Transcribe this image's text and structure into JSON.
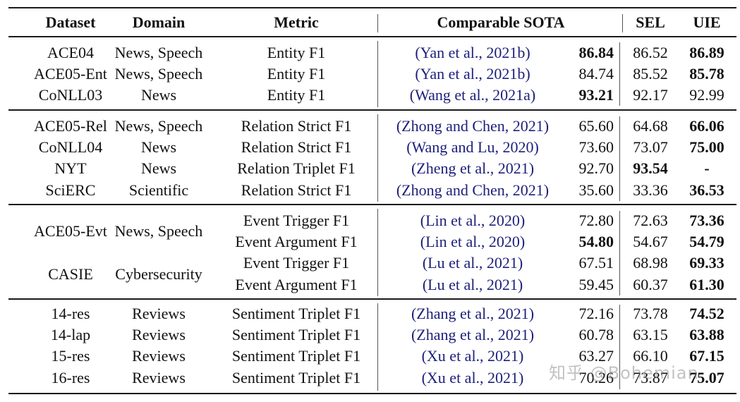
{
  "table": {
    "headers": {
      "dataset": "Dataset",
      "domain": "Domain",
      "metric": "Metric",
      "sota": "Comparable SOTA",
      "sel": "SEL",
      "uie": "UIE"
    },
    "groups": [
      {
        "name": "entity",
        "rows": [
          {
            "dataset": "ACE04",
            "domain": "News, Speech",
            "metric": "Entity F1",
            "cite": "(Yan et al., 2021b)",
            "sota": "86.84",
            "sota_bold": true,
            "sel": "86.52",
            "sel_bold": false,
            "uie": "86.89",
            "uie_bold": true
          },
          {
            "dataset": "ACE05-Ent",
            "domain": "News, Speech",
            "metric": "Entity F1",
            "cite": "(Yan et al., 2021b)",
            "sota": "84.74",
            "sota_bold": false,
            "sel": "85.52",
            "sel_bold": false,
            "uie": "85.78",
            "uie_bold": true
          },
          {
            "dataset": "CoNLL03",
            "domain": "News",
            "metric": "Entity F1",
            "cite": "(Wang et al., 2021a)",
            "sota": "93.21",
            "sota_bold": true,
            "sel": "92.17",
            "sel_bold": false,
            "uie": "92.99",
            "uie_bold": false
          }
        ]
      },
      {
        "name": "relation",
        "rows": [
          {
            "dataset": "ACE05-Rel",
            "domain": "News, Speech",
            "metric": "Relation Strict F1",
            "cite": "(Zhong and Chen, 2021)",
            "sota": "65.60",
            "sota_bold": false,
            "sel": "64.68",
            "sel_bold": false,
            "uie": "66.06",
            "uie_bold": true
          },
          {
            "dataset": "CoNLL04",
            "domain": "News",
            "metric": "Relation Strict F1",
            "cite": "(Wang and Lu, 2020)",
            "sota": "73.60",
            "sota_bold": false,
            "sel": "73.07",
            "sel_bold": false,
            "uie": "75.00",
            "uie_bold": true
          },
          {
            "dataset": "NYT",
            "domain": "News",
            "metric": "Relation Triplet F1",
            "cite": "(Zheng et al., 2021)",
            "sota": "92.70",
            "sota_bold": false,
            "sel": "93.54",
            "sel_bold": true,
            "uie": "-",
            "uie_bold": true
          },
          {
            "dataset": "SciERC",
            "domain": "Scientific",
            "metric": "Relation Strict F1",
            "cite": "(Zhong and Chen, 2021)",
            "sota": "35.60",
            "sota_bold": false,
            "sel": "33.36",
            "sel_bold": false,
            "uie": "36.53",
            "uie_bold": true
          }
        ]
      },
      {
        "name": "event",
        "merged": [
          {
            "dataset": "ACE05-Evt",
            "domain": "News, Speech"
          },
          {
            "dataset": "CASIE",
            "domain": "Cybersecurity"
          }
        ],
        "rows": [
          {
            "metric": "Event Trigger F1",
            "cite": "(Lin et al., 2020)",
            "sota": "72.80",
            "sota_bold": false,
            "sel": "72.63",
            "sel_bold": false,
            "uie": "73.36",
            "uie_bold": true
          },
          {
            "metric": "Event Argument F1",
            "cite": "(Lin et al., 2020)",
            "sota": "54.80",
            "sota_bold": true,
            "sel": "54.67",
            "sel_bold": false,
            "uie": "54.79",
            "uie_bold": true
          },
          {
            "metric": "Event Trigger F1",
            "cite": "(Lu et al., 2021)",
            "sota": "67.51",
            "sota_bold": false,
            "sel": "68.98",
            "sel_bold": false,
            "uie": "69.33",
            "uie_bold": true
          },
          {
            "metric": "Event Argument F1",
            "cite": "(Lu et al., 2021)",
            "sota": "59.45",
            "sota_bold": false,
            "sel": "60.37",
            "sel_bold": false,
            "uie": "61.30",
            "uie_bold": true
          }
        ]
      },
      {
        "name": "sentiment",
        "rows": [
          {
            "dataset": "14-res",
            "domain": "Reviews",
            "metric": "Sentiment Triplet F1",
            "cite": "(Zhang et al., 2021)",
            "sota": "72.16",
            "sota_bold": false,
            "sel": "73.78",
            "sel_bold": false,
            "uie": "74.52",
            "uie_bold": true
          },
          {
            "dataset": "14-lap",
            "domain": "Reviews",
            "metric": "Sentiment Triplet F1",
            "cite": "(Zhang et al., 2021)",
            "sota": "60.78",
            "sota_bold": false,
            "sel": "63.15",
            "sel_bold": false,
            "uie": "63.88",
            "uie_bold": true
          },
          {
            "dataset": "15-res",
            "domain": "Reviews",
            "metric": "Sentiment Triplet F1",
            "cite": "(Xu et al., 2021)",
            "sota": "63.27",
            "sota_bold": false,
            "sel": "66.10",
            "sel_bold": false,
            "uie": "67.15",
            "uie_bold": true
          },
          {
            "dataset": "16-res",
            "domain": "Reviews",
            "metric": "Sentiment Triplet F1",
            "cite": "(Xu et al., 2021)",
            "sota": "70.26",
            "sota_bold": false,
            "sel": "73.87",
            "sel_bold": false,
            "uie": "75.07",
            "uie_bold": true
          }
        ]
      }
    ]
  },
  "watermark": "知乎 @Bohemian",
  "colors": {
    "citation": "#1c1f7a",
    "text": "#111111",
    "rule": "#1a1a1a"
  }
}
